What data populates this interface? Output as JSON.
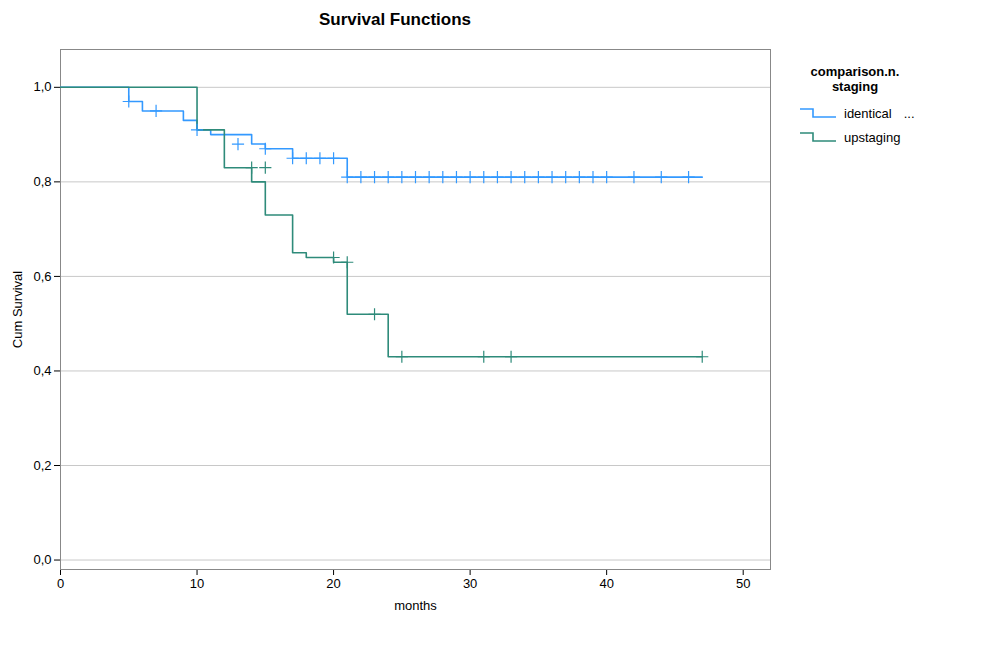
{
  "chart_data": {
    "type": "step",
    "title": "Survival Functions",
    "xlabel": "months",
    "ylabel": "Cum Survival",
    "legend_title": "comparison.n.\nstaging",
    "annotations": [
      "..."
    ],
    "xlim": [
      0,
      52
    ],
    "ylim": [
      -0.02,
      1.08
    ],
    "xticks": [
      0,
      10,
      20,
      30,
      40,
      50
    ],
    "yticks": [
      {
        "value": 0.0,
        "label": "0,0"
      },
      {
        "value": 0.2,
        "label": "0,2"
      },
      {
        "value": 0.4,
        "label": "0,4"
      },
      {
        "value": 0.6,
        "label": "0,6"
      },
      {
        "value": 0.8,
        "label": "0,8"
      },
      {
        "value": 1.0,
        "label": "1,0"
      }
    ],
    "grid": "y",
    "legend": "right",
    "series": [
      {
        "name": "identical",
        "color": "#3399ff",
        "x": [
          0,
          2,
          5,
          6,
          9,
          10,
          11,
          12,
          14,
          15,
          17,
          18,
          19,
          20,
          21,
          22,
          23,
          24,
          25,
          26,
          27,
          28,
          29,
          47
        ],
        "values": [
          1.0,
          1.0,
          0.97,
          0.95,
          0.93,
          0.91,
          0.9,
          0.9,
          0.88,
          0.87,
          0.85,
          0.85,
          0.85,
          0.85,
          0.81,
          0.81,
          0.81,
          0.81,
          0.81,
          0.81,
          0.81,
          0.81,
          0.81,
          0.81
        ],
        "censors": {
          "marker": "plus",
          "x": [
            5,
            7,
            10,
            13,
            15,
            17,
            18,
            19,
            20,
            21,
            22,
            23,
            24,
            25,
            26,
            27,
            28,
            29,
            30,
            31,
            32,
            33,
            34,
            35,
            36,
            37,
            38,
            39,
            40,
            42,
            44,
            46
          ],
          "values": [
            0.97,
            0.95,
            0.91,
            0.88,
            0.87,
            0.85,
            0.85,
            0.85,
            0.85,
            0.81,
            0.81,
            0.81,
            0.81,
            0.81,
            0.81,
            0.81,
            0.81,
            0.81,
            0.81,
            0.81,
            0.81,
            0.81,
            0.81,
            0.81,
            0.81,
            0.81,
            0.81,
            0.81,
            0.81,
            0.81,
            0.81,
            0.81
          ]
        }
      },
      {
        "name": "upstaging",
        "color": "#2e8b7a",
        "x": [
          0,
          8,
          10,
          12,
          14,
          15,
          16,
          17,
          18,
          19,
          20,
          21,
          22,
          24,
          25,
          26,
          27,
          28,
          30,
          31,
          32,
          47
        ],
        "values": [
          1.0,
          1.0,
          0.91,
          0.83,
          0.8,
          0.73,
          0.73,
          0.65,
          0.64,
          0.64,
          0.63,
          0.52,
          0.52,
          0.43,
          0.43,
          0.43,
          0.43,
          0.43,
          0.43,
          0.43,
          0.43,
          0.43
        ],
        "censors": {
          "marker": "plus",
          "x": [
            14,
            15,
            20,
            21,
            23,
            25,
            31,
            33,
            47
          ],
          "values": [
            0.83,
            0.83,
            0.64,
            0.63,
            0.52,
            0.43,
            0.43,
            0.43,
            0.43
          ]
        }
      }
    ]
  }
}
